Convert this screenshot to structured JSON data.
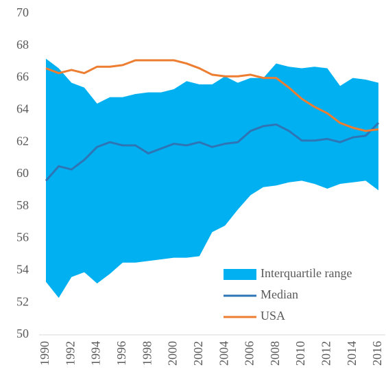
{
  "chart_data": {
    "type": "band-line",
    "x": [
      1990,
      1991,
      1992,
      1993,
      1994,
      1995,
      1996,
      1997,
      1998,
      1999,
      2000,
      2001,
      2002,
      2003,
      2004,
      2005,
      2006,
      2007,
      2008,
      2009,
      2010,
      2011,
      2012,
      2013,
      2014,
      2015,
      2016
    ],
    "xlim": [
      1990,
      2016
    ],
    "xticks": [
      1990,
      1992,
      1994,
      1996,
      1998,
      2000,
      2002,
      2004,
      2006,
      2008,
      2010,
      2012,
      2014,
      2016
    ],
    "ylim": [
      50,
      70
    ],
    "yticks": [
      50,
      52,
      54,
      56,
      58,
      60,
      62,
      64,
      66,
      68,
      70
    ],
    "legend": "bottom-right",
    "series": [
      {
        "name": "Interquartile range",
        "type": "area",
        "color": "#00b0f0",
        "upper": [
          67.2,
          66.6,
          65.7,
          65.4,
          64.4,
          64.8,
          64.8,
          65.0,
          65.1,
          65.1,
          65.3,
          65.8,
          65.6,
          65.6,
          66.1,
          65.7,
          66.0,
          66.0,
          66.9,
          66.7,
          66.6,
          66.7,
          66.6,
          65.5,
          66.0,
          65.9,
          65.7
        ],
        "lower": [
          53.3,
          52.3,
          53.6,
          53.9,
          53.2,
          53.8,
          54.5,
          54.5,
          54.6,
          54.7,
          54.8,
          54.8,
          54.9,
          56.4,
          56.8,
          57.8,
          58.7,
          59.2,
          59.3,
          59.5,
          59.6,
          59.4,
          59.1,
          59.4,
          59.5,
          59.6,
          59.0
        ]
      },
      {
        "name": "Median",
        "type": "line",
        "color": "#2e75b6",
        "values": [
          59.6,
          60.5,
          60.3,
          60.9,
          61.7,
          62.0,
          61.8,
          61.8,
          61.3,
          61.6,
          61.9,
          61.8,
          62.0,
          61.7,
          61.9,
          62.0,
          62.7,
          63.0,
          63.1,
          62.7,
          62.1,
          62.1,
          62.2,
          62.0,
          62.3,
          62.4,
          63.2
        ]
      },
      {
        "name": "USA",
        "type": "line",
        "color": "#ed7d31",
        "values": [
          66.6,
          66.3,
          66.5,
          66.3,
          66.7,
          66.7,
          66.8,
          67.1,
          67.1,
          67.1,
          67.1,
          66.9,
          66.6,
          66.2,
          66.1,
          66.1,
          66.2,
          66.0,
          66.0,
          65.4,
          64.7,
          64.2,
          63.8,
          63.2,
          62.9,
          62.7,
          62.8
        ]
      }
    ]
  }
}
